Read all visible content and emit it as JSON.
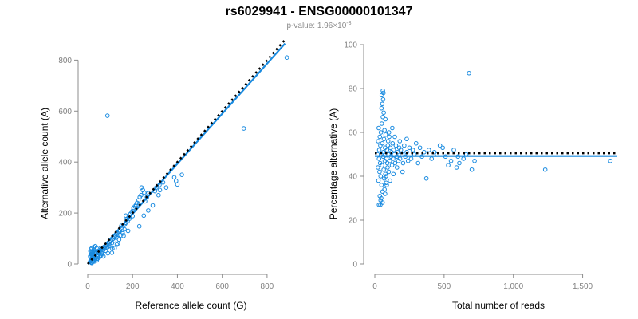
{
  "title": "rs6029941 - ENSG00000101347",
  "subtitle_prefix": "p-value: 1.96×10",
  "subtitle_exponent": "-3",
  "colors": {
    "points": "#1a8be0",
    "fit_line": "#1a8be0",
    "reference_line": "#000000",
    "axis": "#8c8c8c"
  },
  "chart_data": [
    {
      "type": "scatter",
      "xlabel": "Reference allele count (G)",
      "ylabel": "Alternative allele count (A)",
      "xlim": [
        0,
        900
      ],
      "ylim": [
        0,
        820
      ],
      "xticks": [
        0,
        200,
        400,
        600,
        800
      ],
      "xtick_labels": [
        "0",
        "200",
        "400",
        "600",
        "800"
      ],
      "yticks": [
        0,
        200,
        400,
        600,
        800
      ],
      "ytick_labels": [
        "0",
        "200",
        "400",
        "600",
        "800"
      ],
      "grid": false,
      "reference_line": {
        "style": "dotted",
        "points": [
          [
            0,
            0
          ],
          [
            880,
            880
          ]
        ]
      },
      "fit_line": {
        "style": "solid",
        "points": [
          [
            0,
            0
          ],
          [
            880,
            865
          ]
        ]
      },
      "points": [
        [
          10,
          8
        ],
        [
          12,
          10
        ],
        [
          14,
          12
        ],
        [
          15,
          20
        ],
        [
          16,
          14
        ],
        [
          18,
          16
        ],
        [
          20,
          22
        ],
        [
          22,
          18
        ],
        [
          24,
          28
        ],
        [
          25,
          12
        ],
        [
          11,
          30
        ],
        [
          13,
          26
        ],
        [
          17,
          36
        ],
        [
          19,
          40
        ],
        [
          21,
          34
        ],
        [
          23,
          42
        ],
        [
          26,
          38
        ],
        [
          28,
          30
        ],
        [
          30,
          24
        ],
        [
          32,
          46
        ],
        [
          12,
          50
        ],
        [
          16,
          44
        ],
        [
          20,
          48
        ],
        [
          24,
          52
        ],
        [
          28,
          56
        ],
        [
          32,
          34
        ],
        [
          35,
          40
        ],
        [
          38,
          44
        ],
        [
          40,
          20
        ],
        [
          42,
          50
        ],
        [
          15,
          6
        ],
        [
          18,
          4
        ],
        [
          22,
          9
        ],
        [
          27,
          15
        ],
        [
          33,
          18
        ],
        [
          36,
          26
        ],
        [
          44,
          30
        ],
        [
          46,
          36
        ],
        [
          48,
          42
        ],
        [
          50,
          46
        ],
        [
          14,
          58
        ],
        [
          18,
          62
        ],
        [
          26,
          66
        ],
        [
          34,
          70
        ],
        [
          42,
          60
        ],
        [
          52,
          54
        ],
        [
          55,
          50
        ],
        [
          58,
          62
        ],
        [
          60,
          44
        ],
        [
          62,
          58
        ],
        [
          30,
          10
        ],
        [
          40,
          14
        ],
        [
          45,
          22
        ],
        [
          54,
          28
        ],
        [
          60,
          34
        ],
        [
          64,
          40
        ],
        [
          66,
          48
        ],
        [
          70,
          56
        ],
        [
          72,
          66
        ],
        [
          75,
          60
        ],
        [
          78,
          70
        ],
        [
          80,
          52
        ],
        [
          84,
          74
        ],
        [
          86,
          64
        ],
        [
          90,
          80
        ],
        [
          92,
          68
        ],
        [
          95,
          78
        ],
        [
          98,
          86
        ],
        [
          100,
          72
        ],
        [
          104,
          90
        ],
        [
          108,
          82
        ],
        [
          110,
          96
        ],
        [
          114,
          100
        ],
        [
          118,
          92
        ],
        [
          120,
          106
        ],
        [
          124,
          112
        ],
        [
          128,
          104
        ],
        [
          132,
          120
        ],
        [
          136,
          114
        ],
        [
          140,
          128
        ],
        [
          144,
          132
        ],
        [
          150,
          140
        ],
        [
          154,
          126
        ],
        [
          160,
          150
        ],
        [
          166,
          156
        ],
        [
          170,
          162
        ],
        [
          174,
          176
        ],
        [
          178,
          168
        ],
        [
          182,
          184
        ],
        [
          186,
          178
        ],
        [
          190,
          196
        ],
        [
          196,
          204
        ],
        [
          200,
          208
        ],
        [
          204,
          220
        ],
        [
          210,
          226
        ],
        [
          216,
          232
        ],
        [
          220,
          240
        ],
        [
          226,
          250
        ],
        [
          232,
          262
        ],
        [
          238,
          270
        ],
        [
          150,
          150
        ],
        [
          170,
          190
        ],
        [
          200,
          188
        ],
        [
          256,
          246
        ],
        [
          264,
          262
        ],
        [
          270,
          278
        ],
        [
          300,
          286
        ],
        [
          306,
          300
        ],
        [
          320,
          310
        ],
        [
          336,
          320
        ],
        [
          70,
          30
        ],
        [
          90,
          42
        ],
        [
          110,
          60
        ],
        [
          130,
          76
        ],
        [
          160,
          110
        ],
        [
          180,
          130
        ],
        [
          230,
          148
        ],
        [
          250,
          190
        ],
        [
          270,
          210
        ],
        [
          290,
          230
        ],
        [
          240,
          300
        ],
        [
          246,
          290
        ],
        [
          252,
          280
        ],
        [
          316,
          270
        ],
        [
          322,
          290
        ],
        [
          350,
          300
        ],
        [
          386,
          340
        ],
        [
          394,
          326
        ],
        [
          400,
          312
        ],
        [
          420,
          350
        ],
        [
          88,
          582
        ],
        [
          696,
          532
        ],
        [
          888,
          810
        ],
        [
          108,
          44
        ],
        [
          120,
          62
        ],
        [
          134,
          80
        ],
        [
          140,
          96
        ],
        [
          146,
          112
        ],
        [
          156,
          120
        ],
        [
          164,
          136
        ]
      ]
    },
    {
      "type": "scatter",
      "xlabel": "Total number of reads",
      "ylabel": "Percentage alternative (A)",
      "xlim": [
        0,
        1750
      ],
      "ylim": [
        0,
        100
      ],
      "xticks": [
        0,
        500,
        1000,
        1500
      ],
      "xtick_labels": [
        "0",
        "500",
        "1,000",
        "1,500"
      ],
      "yticks": [
        0,
        20,
        40,
        60,
        80,
        100
      ],
      "ytick_labels": [
        "0",
        "20",
        "40",
        "60",
        "80",
        "100"
      ],
      "grid": false,
      "reference_line": {
        "style": "dotted",
        "points": [
          [
            0,
            50.5
          ],
          [
            1750,
            50.5
          ]
        ]
      },
      "fit_line": {
        "style": "solid",
        "points": [
          [
            0,
            49.2
          ],
          [
            1750,
            49.2
          ]
        ]
      },
      "points": [
        [
          20,
          50
        ],
        [
          22,
          44
        ],
        [
          24,
          56
        ],
        [
          26,
          38
        ],
        [
          28,
          62
        ],
        [
          30,
          48
        ],
        [
          32,
          52
        ],
        [
          34,
          42
        ],
        [
          36,
          58
        ],
        [
          38,
          46
        ],
        [
          40,
          54
        ],
        [
          42,
          40
        ],
        [
          44,
          60
        ],
        [
          46,
          50
        ],
        [
          48,
          36
        ],
        [
          50,
          64
        ],
        [
          52,
          45
        ],
        [
          54,
          55
        ],
        [
          56,
          33
        ],
        [
          58,
          67
        ],
        [
          60,
          49
        ],
        [
          62,
          51
        ],
        [
          64,
          43
        ],
        [
          66,
          57
        ],
        [
          68,
          39
        ],
        [
          70,
          61
        ],
        [
          72,
          47
        ],
        [
          74,
          53
        ],
        [
          76,
          41
        ],
        [
          78,
          59
        ],
        [
          30,
          27
        ],
        [
          36,
          31
        ],
        [
          42,
          29
        ],
        [
          48,
          71
        ],
        [
          54,
          73
        ],
        [
          60,
          75
        ],
        [
          64,
          69
        ],
        [
          70,
          34
        ],
        [
          76,
          66
        ],
        [
          82,
          37
        ],
        [
          50,
          77
        ],
        [
          58,
          79
        ],
        [
          62,
          78
        ],
        [
          40,
          27
        ],
        [
          46,
          30
        ],
        [
          56,
          28
        ],
        [
          74,
          32
        ],
        [
          86,
          36
        ],
        [
          92,
          44
        ],
        [
          96,
          56
        ],
        [
          84,
          48
        ],
        [
          88,
          52
        ],
        [
          90,
          46
        ],
        [
          94,
          54
        ],
        [
          98,
          50
        ],
        [
          100,
          42
        ],
        [
          104,
          58
        ],
        [
          108,
          47
        ],
        [
          112,
          53
        ],
        [
          116,
          49
        ],
        [
          120,
          51
        ],
        [
          124,
          45
        ],
        [
          128,
          55
        ],
        [
          132,
          48
        ],
        [
          136,
          52
        ],
        [
          140,
          50
        ],
        [
          146,
          46
        ],
        [
          152,
          54
        ],
        [
          158,
          49
        ],
        [
          164,
          51
        ],
        [
          170,
          47
        ],
        [
          176,
          53
        ],
        [
          182,
          48
        ],
        [
          188,
          52
        ],
        [
          196,
          50
        ],
        [
          204,
          46
        ],
        [
          212,
          54
        ],
        [
          220,
          49
        ],
        [
          230,
          51
        ],
        [
          240,
          47
        ],
        [
          250,
          53
        ],
        [
          262,
          48
        ],
        [
          274,
          52
        ],
        [
          286,
          50
        ],
        [
          298,
          55
        ],
        [
          312,
          46
        ],
        [
          326,
          53
        ],
        [
          340,
          49
        ],
        [
          356,
          51
        ],
        [
          372,
          39
        ],
        [
          390,
          52
        ],
        [
          410,
          48
        ],
        [
          430,
          51
        ],
        [
          450,
          50
        ],
        [
          470,
          54
        ],
        [
          490,
          53
        ],
        [
          510,
          49
        ],
        [
          530,
          45
        ],
        [
          550,
          47
        ],
        [
          570,
          52
        ],
        [
          590,
          44
        ],
        [
          610,
          46
        ],
        [
          640,
          48
        ],
        [
          660,
          50
        ],
        [
          680,
          87
        ],
        [
          700,
          43
        ],
        [
          720,
          47
        ],
        [
          1230,
          43
        ],
        [
          1700,
          47
        ],
        [
          600,
          49
        ],
        [
          80,
          40
        ],
        [
          102,
          60
        ],
        [
          110,
          38
        ],
        [
          126,
          62
        ],
        [
          134,
          41
        ],
        [
          144,
          58
        ],
        [
          160,
          44
        ],
        [
          180,
          56
        ],
        [
          200,
          42
        ],
        [
          230,
          57
        ]
      ]
    }
  ]
}
